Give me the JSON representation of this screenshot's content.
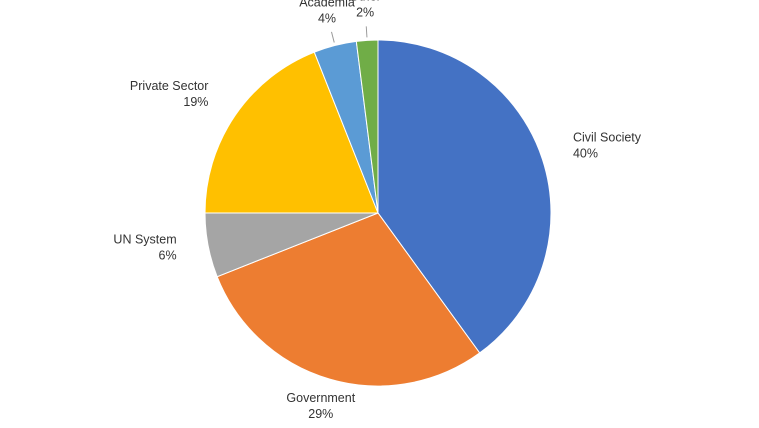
{
  "chart_data": {
    "type": "pie",
    "categories": [
      "Civil Society",
      "Government",
      "UN System",
      "Private Sector",
      "Academia",
      "Other"
    ],
    "values": [
      40,
      29,
      6,
      19,
      4,
      2
    ],
    "value_labels": [
      "40%",
      "29%",
      "6%",
      "19%",
      "4%",
      "2%"
    ],
    "colors": [
      "#4472c4",
      "#ed7d31",
      "#a5a5a5",
      "#ffc000",
      "#5b9bd5",
      "#70ad47"
    ]
  }
}
